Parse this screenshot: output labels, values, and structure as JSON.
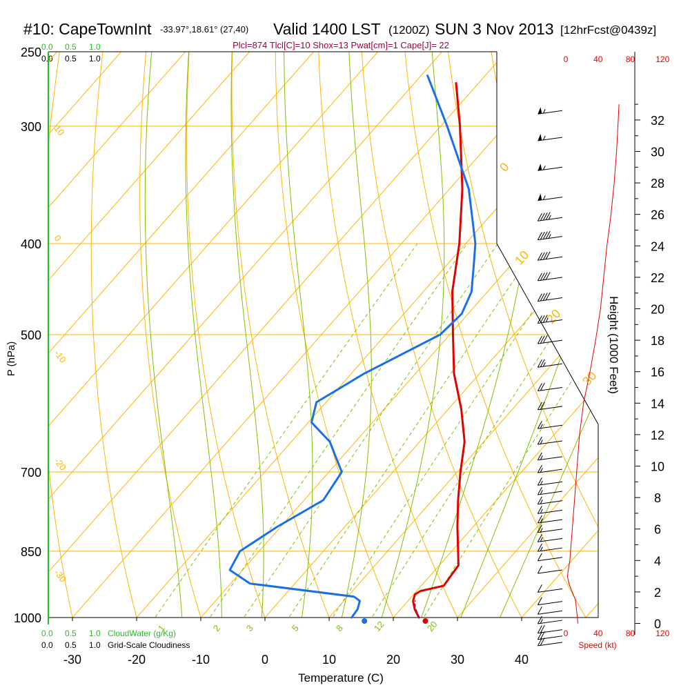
{
  "header": {
    "station_id": "#10: CapeTownInt",
    "coords": "-33.97°,18.61° (27,40)",
    "valid": "Valid 1400 LST",
    "zulu": "(1200Z)",
    "date": "SUN 3 Nov 2013",
    "forecast": "[12hrFcst@0439z]"
  },
  "indices_line": "Plcl=874 Tlcl[C]=10 Shox=13 Pwat[cm]=1 Cape[J]= 22",
  "legend": {
    "cloudwater_ticks": [
      "0.0",
      "0.5",
      "1.0"
    ],
    "cloudiness_ticks": [
      "0.0",
      "0.5",
      "1.0"
    ],
    "cloudwater_label": "CloudWater (g/Kg)",
    "cloudiness_label": "Grid-Scale Cloudiness"
  },
  "colors": {
    "isotherm": "#ffb400",
    "dry_adiabat": "#ffb400",
    "moist_adiabat": "#80c000",
    "mixing_ratio": "#80c000",
    "temperature": "#e00000",
    "dewpoint": "#1a6fe8",
    "wind_speed": "#e00000",
    "cloudwater": "#20c020",
    "indices": "#a00040"
  },
  "chart_data": {
    "type": "skew-t",
    "xlabel": "Temperature (C)",
    "ylabel": "P (hPa)",
    "y2label": "Height (1000 Feet)",
    "x3label": "Speed (kt)",
    "x_ticks": [
      -30,
      -20,
      -10,
      0,
      10,
      20,
      30,
      40
    ],
    "p_ticks": [
      250,
      300,
      400,
      500,
      700,
      850,
      1000
    ],
    "height_ticks_kft": [
      0,
      2,
      4,
      6,
      8,
      10,
      12,
      14,
      16,
      18,
      20,
      22,
      24,
      26,
      28,
      30,
      32
    ],
    "speed_ticks_kt": [
      0,
      40,
      80,
      120
    ],
    "isotherm_labels": [
      "10",
      "0",
      "-10",
      "-20",
      "-30"
    ],
    "theta_labels": [
      "0",
      "10",
      "20",
      "30"
    ],
    "mixing_ratio_labels": [
      "1",
      "2",
      "3",
      "5",
      "8",
      "12",
      "20"
    ],
    "temperature": [
      {
        "p": 1000,
        "t": 24.0
      },
      {
        "p": 980,
        "t": 22.2
      },
      {
        "p": 960,
        "t": 20.8
      },
      {
        "p": 945,
        "t": 20.2
      },
      {
        "p": 937,
        "t": 20.6
      },
      {
        "p": 925,
        "t": 23.5
      },
      {
        "p": 880,
        "t": 23.0
      },
      {
        "p": 850,
        "t": 21.0
      },
      {
        "p": 800,
        "t": 17.5
      },
      {
        "p": 750,
        "t": 14.0
      },
      {
        "p": 700,
        "t": 10.5
      },
      {
        "p": 650,
        "t": 7.0
      },
      {
        "p": 600,
        "t": 2.0
      },
      {
        "p": 550,
        "t": -4.0
      },
      {
        "p": 500,
        "t": -9.5
      },
      {
        "p": 450,
        "t": -15.5
      },
      {
        "p": 400,
        "t": -21.0
      },
      {
        "p": 350,
        "t": -28.0
      },
      {
        "p": 300,
        "t": -37.0
      },
      {
        "p": 270,
        "t": -43.5
      }
    ],
    "dewpoint": [
      {
        "p": 1000,
        "t": 13.5
      },
      {
        "p": 980,
        "t": 13.3
      },
      {
        "p": 960,
        "t": 12.5
      },
      {
        "p": 950,
        "t": 11.0
      },
      {
        "p": 920,
        "t": -7.0
      },
      {
        "p": 890,
        "t": -12.0
      },
      {
        "p": 850,
        "t": -13.0
      },
      {
        "p": 800,
        "t": -10.5
      },
      {
        "p": 750,
        "t": -7.0
      },
      {
        "p": 700,
        "t": -8.0
      },
      {
        "p": 650,
        "t": -14.0
      },
      {
        "p": 620,
        "t": -19.5
      },
      {
        "p": 590,
        "t": -21.5
      },
      {
        "p": 550,
        "t": -18.0
      },
      {
        "p": 500,
        "t": -11.5
      },
      {
        "p": 475,
        "t": -11.0
      },
      {
        "p": 450,
        "t": -12.5
      },
      {
        "p": 420,
        "t": -16.0
      },
      {
        "p": 400,
        "t": -18.5
      },
      {
        "p": 350,
        "t": -27.0
      },
      {
        "p": 300,
        "t": -39.0
      },
      {
        "p": 265,
        "t": -49.0
      }
    ],
    "surface_markers": [
      {
        "name": "temperature",
        "p": 1000,
        "t": 25.0
      },
      {
        "name": "dewpoint",
        "p": 1000,
        "t": 15.5
      }
    ],
    "wind_speed_profile": [
      {
        "h": 0,
        "kt": 15
      },
      {
        "h": 0.5,
        "kt": 14
      },
      {
        "h": 1.5,
        "kt": 12
      },
      {
        "h": 2.5,
        "kt": 4
      },
      {
        "h": 3.0,
        "kt": 2
      },
      {
        "h": 4,
        "kt": 5
      },
      {
        "h": 6,
        "kt": 8
      },
      {
        "h": 8,
        "kt": 11
      },
      {
        "h": 10,
        "kt": 14
      },
      {
        "h": 12,
        "kt": 17
      },
      {
        "h": 14,
        "kt": 22
      },
      {
        "h": 16,
        "kt": 30
      },
      {
        "h": 18,
        "kt": 37
      },
      {
        "h": 20,
        "kt": 43
      },
      {
        "h": 22,
        "kt": 47
      },
      {
        "h": 24,
        "kt": 51
      },
      {
        "h": 26,
        "kt": 56
      },
      {
        "h": 28,
        "kt": 60
      },
      {
        "h": 30,
        "kt": 63
      },
      {
        "h": 32,
        "kt": 65
      },
      {
        "h": 33,
        "kt": 66
      }
    ],
    "wind_barbs": [
      {
        "h": -1.2,
        "kt": 20
      },
      {
        "h": -0.8,
        "kt": 20
      },
      {
        "h": -0.4,
        "kt": 18
      },
      {
        "h": 0.2,
        "kt": 15
      },
      {
        "h": 0.8,
        "kt": 12
      },
      {
        "h": 1.4,
        "kt": 10
      },
      {
        "h": 2.2,
        "kt": 8
      },
      {
        "h": 3.4,
        "kt": 10
      },
      {
        "h": 4.2,
        "kt": 12
      },
      {
        "h": 4.8,
        "kt": 15
      },
      {
        "h": 5.4,
        "kt": 15
      },
      {
        "h": 6.0,
        "kt": 15
      },
      {
        "h": 6.6,
        "kt": 15
      },
      {
        "h": 7.2,
        "kt": 15
      },
      {
        "h": 7.8,
        "kt": 15
      },
      {
        "h": 8.4,
        "kt": 15
      },
      {
        "h": 9.0,
        "kt": 15
      },
      {
        "h": 9.8,
        "kt": 15
      },
      {
        "h": 10.6,
        "kt": 15
      },
      {
        "h": 11.6,
        "kt": 15
      },
      {
        "h": 12.6,
        "kt": 15
      },
      {
        "h": 13.8,
        "kt": 20
      },
      {
        "h": 15.0,
        "kt": 20
      },
      {
        "h": 16.5,
        "kt": 25
      },
      {
        "h": 18.0,
        "kt": 30
      },
      {
        "h": 19.3,
        "kt": 35
      },
      {
        "h": 20.7,
        "kt": 40
      },
      {
        "h": 22.0,
        "kt": 40
      },
      {
        "h": 23.3,
        "kt": 40
      },
      {
        "h": 24.6,
        "kt": 45
      },
      {
        "h": 25.8,
        "kt": 45
      },
      {
        "h": 27.1,
        "kt": 55
      },
      {
        "h": 29.0,
        "kt": 55
      },
      {
        "h": 30.9,
        "kt": 55
      },
      {
        "h": 32.6,
        "kt": 55
      }
    ]
  }
}
